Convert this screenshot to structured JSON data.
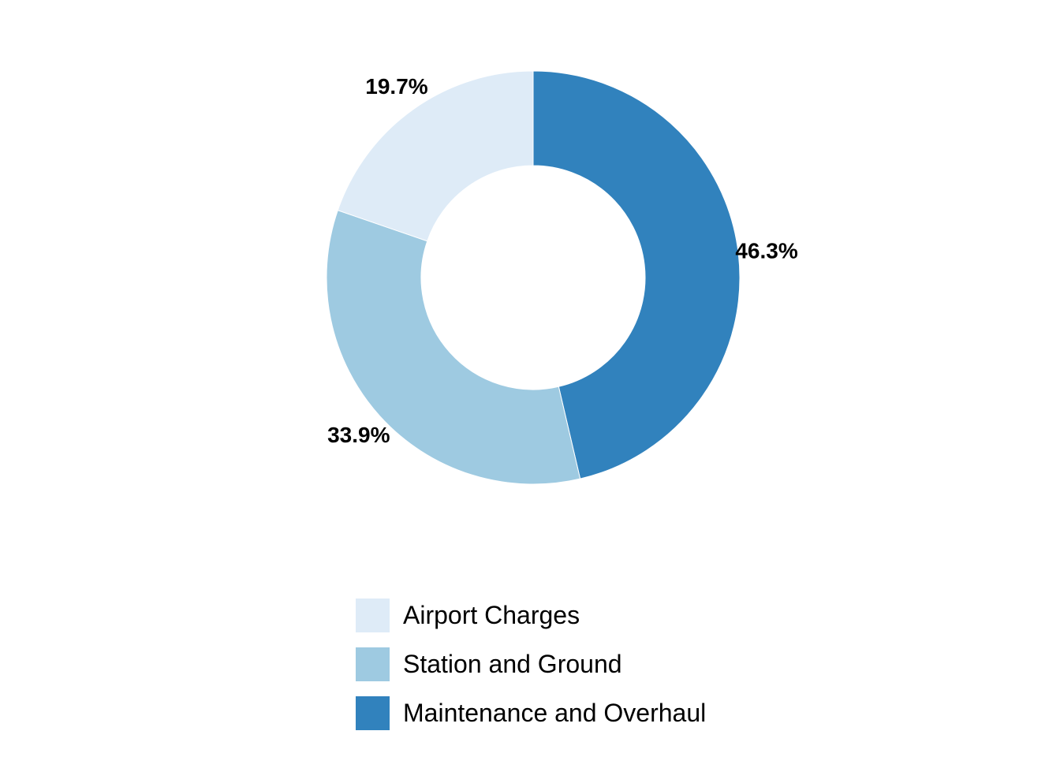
{
  "chart_data": {
    "type": "pie",
    "donut": true,
    "title": "",
    "categories": [
      "Airport Charges",
      "Station and Ground",
      "Maintenance and Overhaul"
    ],
    "values": [
      19.7,
      33.9,
      46.3
    ],
    "value_labels": [
      "19.7%",
      "33.9%",
      "46.3%"
    ],
    "colors": [
      "#deebf7",
      "#9ecae1",
      "#3182bd"
    ],
    "legend": {
      "position": "bottom",
      "entries": [
        "Airport Charges",
        "Station and Ground",
        "Maintenance and Overhaul"
      ]
    }
  }
}
